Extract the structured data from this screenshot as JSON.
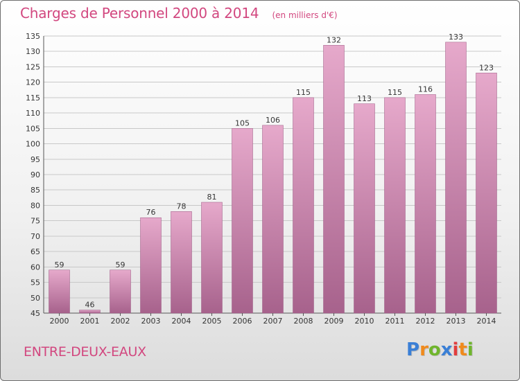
{
  "title": "Charges de Personnel 2000 à 2014",
  "subtitle": "(en milliers d'€)",
  "commune": "ENTRE-DEUX-EAUX",
  "logo": {
    "text": "Proxiti",
    "letter_colors": [
      "#3a7fd6",
      "#f08a1c",
      "#6fb52c",
      "#3a7fd6",
      "#e23d3d",
      "#f08a1c",
      "#6fb52c"
    ]
  },
  "colors": {
    "bar": "#c97aa8",
    "bar_light": "#e6a9cb",
    "bar_dark": "#a7628c",
    "grid": "#c8c8c8",
    "title": "#d2477f"
  },
  "chart_data": {
    "type": "bar",
    "categories": [
      "2000",
      "2001",
      "2002",
      "2003",
      "2004",
      "2005",
      "2006",
      "2007",
      "2008",
      "2009",
      "2010",
      "2011",
      "2012",
      "2013",
      "2014"
    ],
    "values": [
      59,
      46,
      59,
      76,
      78,
      81,
      105,
      106,
      115,
      132,
      113,
      115,
      116,
      133,
      123
    ],
    "title": "Charges de Personnel 2000 à 2014",
    "subtitle": "(en milliers d'€)",
    "xlabel": "",
    "ylabel": "",
    "ylim": [
      45,
      135
    ],
    "yticks": [
      45,
      50,
      55,
      60,
      65,
      70,
      75,
      80,
      85,
      90,
      95,
      100,
      105,
      110,
      115,
      120,
      125,
      130,
      135
    ],
    "grid": true,
    "legend": "none"
  }
}
